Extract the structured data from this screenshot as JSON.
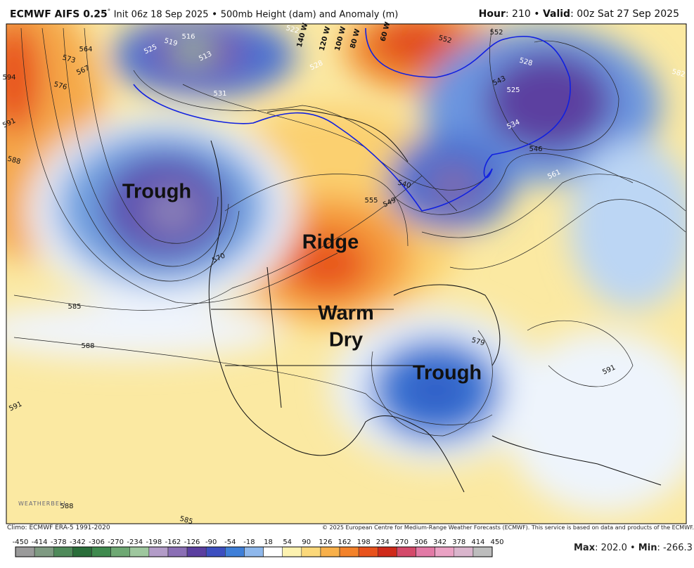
{
  "header": {
    "model": "ECMWF AIFS 0.25",
    "degree": "°",
    "init": "Init 06z 18 Sep 2025",
    "bullet": "•",
    "product": "500mb Height (dam) and Anomaly (m)",
    "hour_label": "Hour",
    "hour": ": 210",
    "valid_label": "Valid",
    "valid": ": 00z Sat 27 Sep 2025"
  },
  "annotations": [
    "Trough",
    "Ridge",
    "Warm",
    "Dry",
    "Trough"
  ],
  "meridian_labels": [
    "140 W",
    "120 W",
    "100 W",
    "80 W",
    "60 W"
  ],
  "contour_labels": [
    525,
    519,
    516,
    513,
    522,
    531,
    528,
    573,
    564,
    567,
    576,
    594,
    591,
    588,
    585,
    570,
    552,
    555,
    549,
    540,
    546,
    534,
    528,
    525,
    561,
    582,
    588,
    591,
    579,
    588,
    591,
    585,
    552,
    543
  ],
  "footer": {
    "climo": "Climo: ECMWF ERA-5 1991-2020",
    "copyright": "© 2025 European Centre for Medium-Range Weather Forecasts (ECMWF). This service is based on data and products of the ECMWF.",
    "max_label": "Max",
    "max": ": 202.0",
    "bullet": "•",
    "min_label": "Min",
    "min": ": -266.3",
    "logo": "WEATHERBELL"
  },
  "colorbar": {
    "ticks": [
      -450,
      -414,
      -378,
      -342,
      -306,
      -270,
      -234,
      -198,
      -162,
      -126,
      -90,
      -54,
      -18,
      18,
      54,
      90,
      126,
      162,
      198,
      234,
      270,
      306,
      342,
      378,
      414,
      450
    ],
    "colors": [
      "#9a9a9a",
      "#7f9a82",
      "#4f8a5a",
      "#2a6e3a",
      "#3f8a4e",
      "#6ea873",
      "#9ec79e",
      "#b39cc8",
      "#8b6fb5",
      "#5b3fa0",
      "#3d4fc0",
      "#3f7fd8",
      "#8fb8ec",
      "#ffffff",
      "#fdf2b0",
      "#fbd87a",
      "#f8b04a",
      "#f3822a",
      "#e8521c",
      "#cf2a1a",
      "#d44a6a",
      "#e27aa6",
      "#eaa2c4",
      "#d9b5cc",
      "#bdbdbd"
    ]
  }
}
